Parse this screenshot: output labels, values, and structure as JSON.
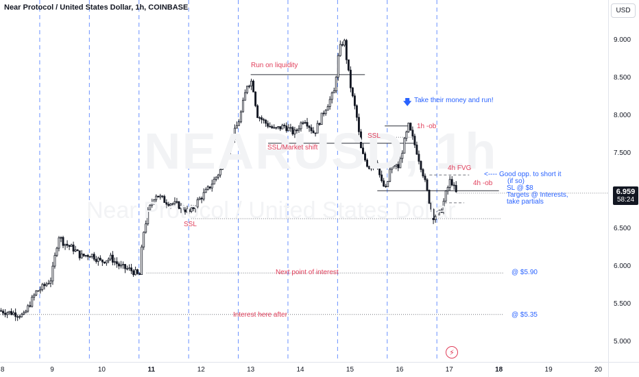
{
  "header": {
    "title": "Near Protocol / United States Dollar, 1h, COINBASE"
  },
  "currency_button": "USD",
  "watermark": {
    "symbol": "NEARUSD, 1h",
    "name": "Near Protocol / United States Dollar"
  },
  "last_price": {
    "price": "6.959",
    "countdown": "58:24",
    "value": 6.959
  },
  "annotations": {
    "run_on_liquidity": "Run on liquidity",
    "ssl_market_shift": "SSL/Market shift",
    "ssl_left": "SSL",
    "ssl_right": "SSL",
    "take_money": "Take their money and run!",
    "ob_1h": "1h -ob",
    "fvg_4h": "4h FVG",
    "ob_4h": "4h -ob",
    "good_opp_1": "<---- Good opp. to short it",
    "good_opp_2": "(if so)",
    "good_opp_3": "SL @ $8",
    "good_opp_4": "Targets @ Interests,",
    "good_opp_5": "take partials",
    "next_poi": "Next point of interest",
    "next_poi_price": "@ $5.90",
    "interest_after": "Interest here after",
    "interest_after_price": "@ $5.35"
  },
  "colors": {
    "up": "#131722",
    "down": "#131722",
    "accent_red": "#e03e5a",
    "accent_blue": "#2962ff",
    "session_line": "#2962ff"
  },
  "chart_data": {
    "type": "candlestick",
    "title": "Near Protocol / United States Dollar, 1h, COINBASE",
    "x_tick_labels": [
      "8",
      "9",
      "10",
      "11",
      "12",
      "13",
      "14",
      "15",
      "16",
      "17",
      "18",
      "19",
      "20"
    ],
    "x_tick_values": [
      8,
      9,
      10,
      11,
      12,
      13,
      14,
      15,
      16,
      17,
      18,
      19,
      20
    ],
    "xlim": [
      7.95,
      20.2
    ],
    "y_tick_labels": [
      "5.000",
      "5.500",
      "6.000",
      "6.500",
      "7.000",
      "7.500",
      "8.000",
      "8.500",
      "9.000"
    ],
    "y_tick_values": [
      5.0,
      5.5,
      6.0,
      6.5,
      7.0,
      7.5,
      8.0,
      8.5,
      9.0
    ],
    "ylim": [
      4.72,
      9.52
    ],
    "grid": false,
    "session_lines_x": [
      8.75,
      9.75,
      10.75,
      11.75,
      12.75,
      13.75,
      14.75,
      15.75,
      16.75
    ],
    "price_path": [
      [
        7.95,
        5.4
      ],
      [
        8.3,
        5.36
      ],
      [
        8.45,
        5.33
      ],
      [
        8.5,
        5.4
      ],
      [
        8.7,
        5.65
      ],
      [
        8.85,
        5.72
      ],
      [
        9.0,
        5.82
      ],
      [
        9.15,
        6.4
      ],
      [
        9.25,
        6.3
      ],
      [
        9.45,
        6.22
      ],
      [
        9.6,
        6.12
      ],
      [
        9.8,
        6.15
      ],
      [
        10.0,
        6.05
      ],
      [
        10.2,
        6.1
      ],
      [
        10.4,
        5.98
      ],
      [
        10.6,
        5.94
      ],
      [
        10.7,
        5.9
      ],
      [
        10.78,
        5.85
      ],
      [
        10.85,
        6.4
      ],
      [
        10.95,
        6.7
      ],
      [
        11.1,
        6.95
      ],
      [
        11.3,
        6.85
      ],
      [
        11.55,
        6.8
      ],
      [
        11.8,
        6.7
      ],
      [
        11.95,
        6.85
      ],
      [
        12.15,
        7.0
      ],
      [
        12.4,
        7.25
      ],
      [
        12.6,
        7.6
      ],
      [
        12.8,
        7.95
      ],
      [
        12.95,
        8.4
      ],
      [
        13.05,
        8.45
      ],
      [
        13.15,
        8.0
      ],
      [
        13.3,
        7.9
      ],
      [
        13.5,
        7.8
      ],
      [
        13.7,
        7.85
      ],
      [
        13.9,
        7.75
      ],
      [
        14.1,
        7.95
      ],
      [
        14.3,
        7.75
      ],
      [
        14.5,
        8.05
      ],
      [
        14.7,
        8.3
      ],
      [
        14.8,
        8.85
      ],
      [
        14.9,
        9.0
      ],
      [
        14.98,
        8.6
      ],
      [
        15.05,
        8.3
      ],
      [
        15.15,
        8.0
      ],
      [
        15.25,
        7.5
      ],
      [
        15.4,
        7.3
      ],
      [
        15.55,
        7.4
      ],
      [
        15.65,
        7.1
      ],
      [
        15.75,
        7.0
      ],
      [
        15.85,
        7.35
      ],
      [
        16.0,
        7.3
      ],
      [
        16.1,
        7.6
      ],
      [
        16.2,
        7.85
      ],
      [
        16.35,
        7.55
      ],
      [
        16.5,
        7.2
      ],
      [
        16.6,
        6.9
      ],
      [
        16.7,
        6.65
      ],
      [
        16.85,
        6.7
      ],
      [
        16.95,
        6.95
      ],
      [
        17.05,
        7.15
      ],
      [
        17.15,
        6.96
      ]
    ],
    "levels": [
      {
        "name": "run-on-liquidity",
        "y": 8.53,
        "x0": 13.0,
        "x1": 15.3,
        "style": "solid"
      },
      {
        "name": "ssl-market-shift",
        "y": 7.62,
        "x0": 13.35,
        "x1": 16.3,
        "style": "solid"
      },
      {
        "name": "ob-1h",
        "y": 7.85,
        "x0": 15.7,
        "x1": 16.2,
        "style": "solid"
      },
      {
        "name": "ssl-right",
        "y": 7.7,
        "x0": 15.85,
        "x1": 16.3,
        "style": "dotted"
      },
      {
        "name": "ob-4h",
        "y": 6.99,
        "x0": 15.55,
        "x1": 18.0,
        "style": "solid"
      },
      {
        "name": "fvg-4h",
        "y": 7.2,
        "x0": 16.6,
        "x1": 17.4,
        "style": "dashed"
      },
      {
        "name": "fvg-4h-low",
        "y": 6.83,
        "x0": 16.9,
        "x1": 17.3,
        "style": "dashed"
      },
      {
        "name": "ssl-left",
        "y": 6.62,
        "x0": 11.8,
        "x1": 18.05,
        "style": "dotted"
      },
      {
        "name": "next-poi",
        "y": 5.9,
        "x0": 10.9,
        "x1": 18.1,
        "style": "dotted"
      },
      {
        "name": "interest-after",
        "y": 5.35,
        "x0": 7.95,
        "x1": 18.1,
        "style": "dotted"
      }
    ]
  }
}
